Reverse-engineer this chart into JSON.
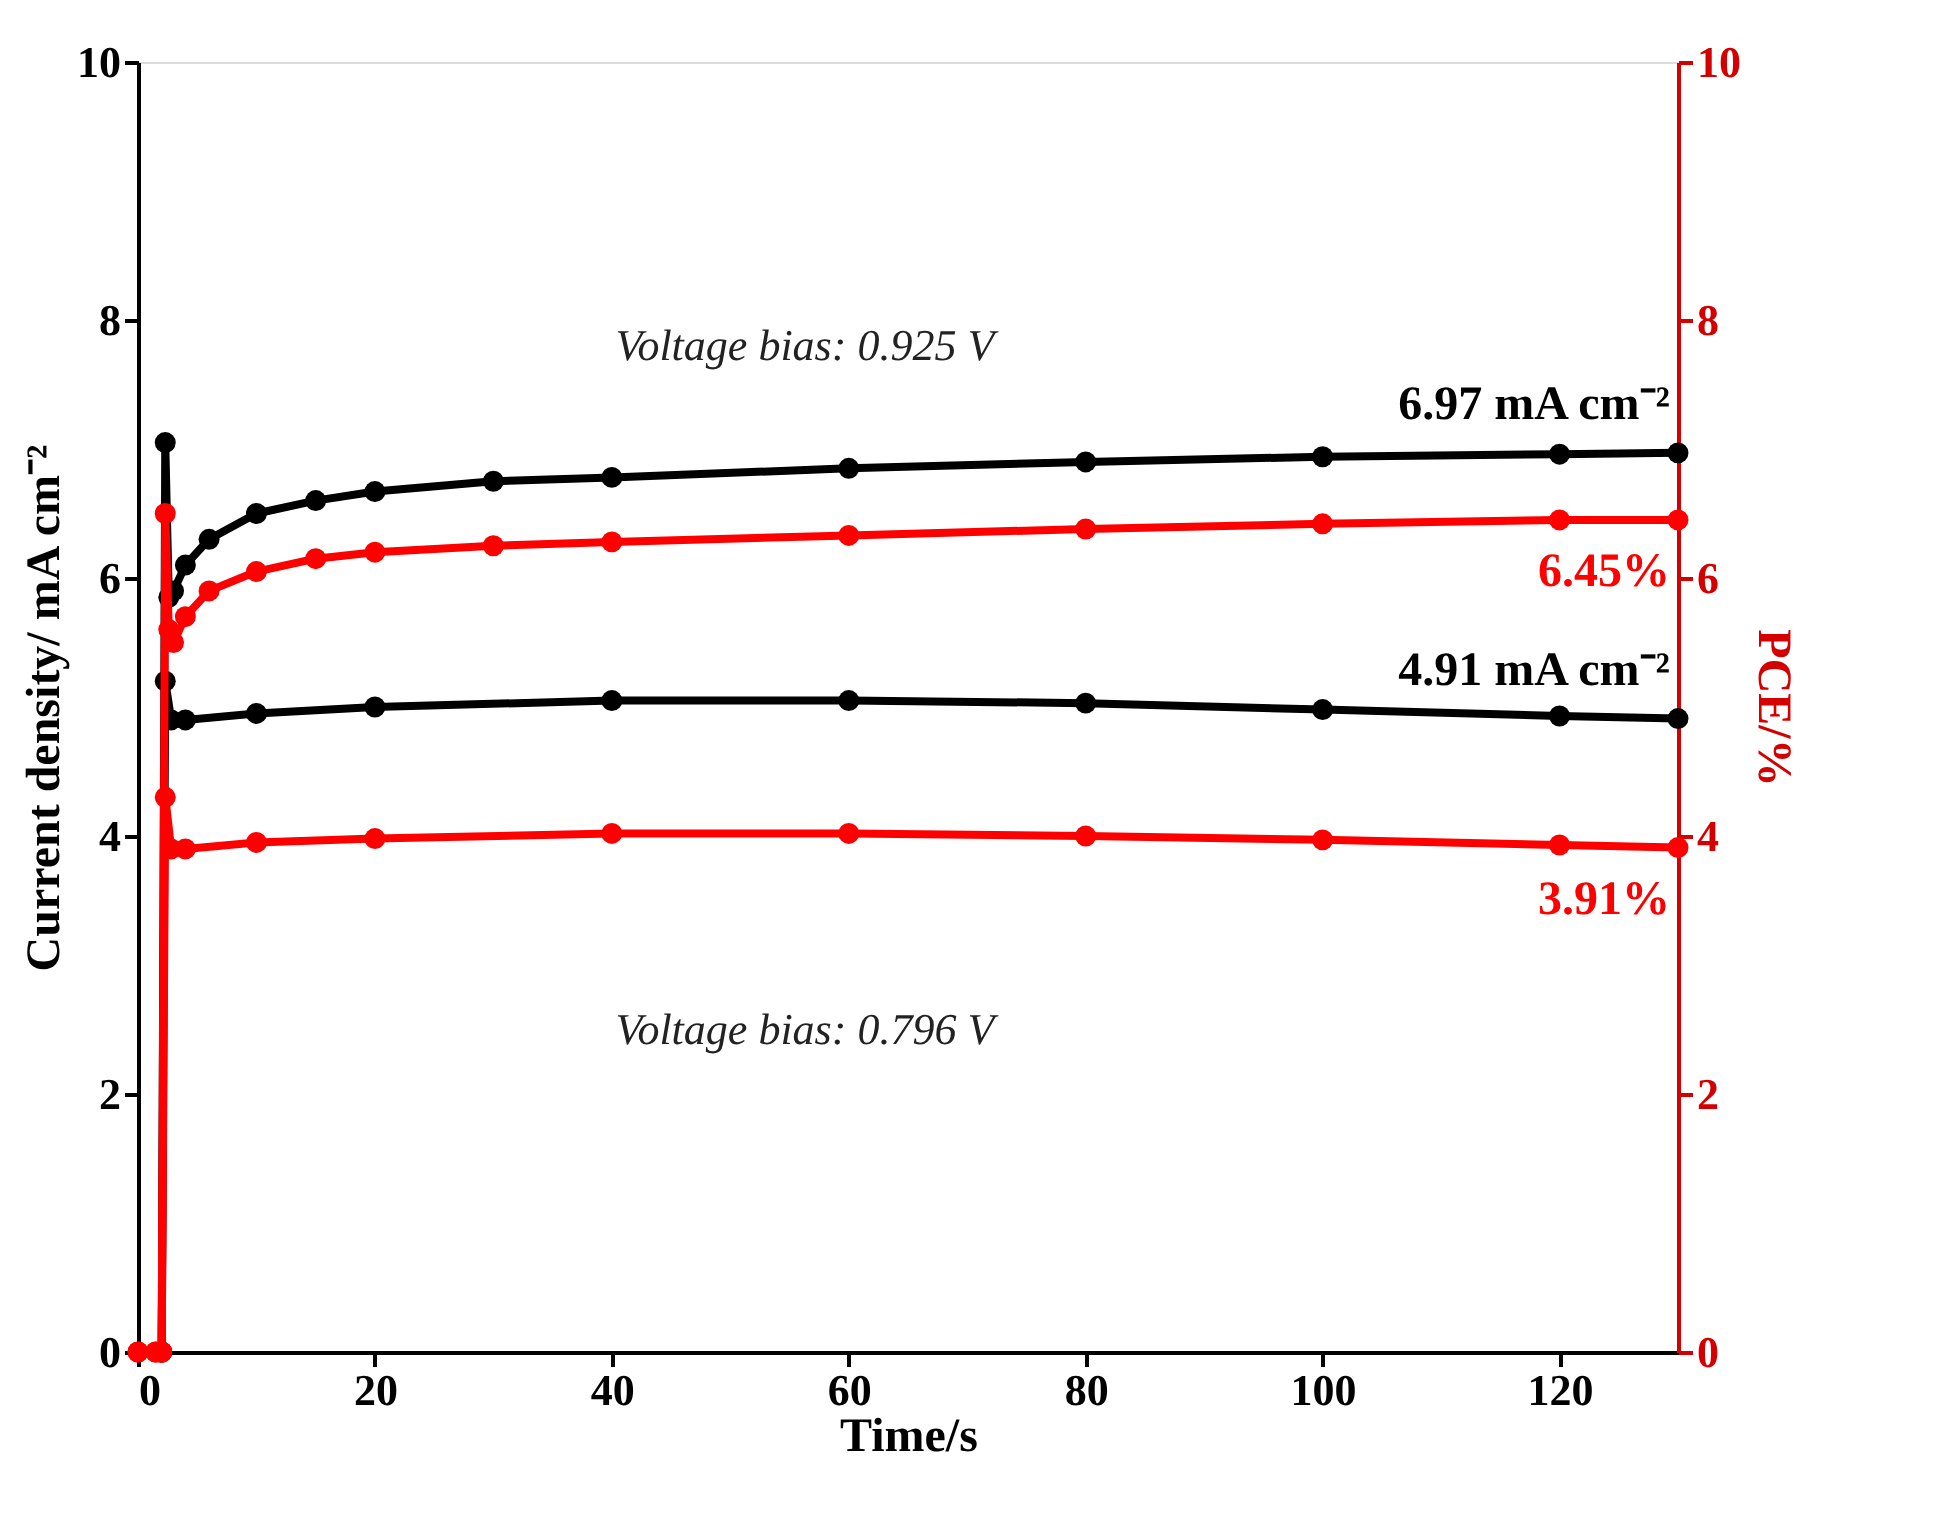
{
  "chart_data": {
    "type": "line",
    "xlabel": "Time/s",
    "ylabel": "Current density/ mA cm⁻²",
    "y2label": "PCE/%",
    "xlim": [
      0,
      130
    ],
    "xticks": [
      0,
      20,
      40,
      60,
      80,
      100,
      120
    ],
    "ylim": [
      0,
      10
    ],
    "yticks": [
      0,
      2,
      4,
      6,
      8,
      10
    ],
    "y2lim": [
      0,
      10
    ],
    "y2ticks": [
      0,
      2,
      4,
      6,
      8,
      10
    ],
    "marker": "circle",
    "grid": false,
    "line_style": "solid",
    "series": [
      {
        "color": "#000000",
        "x": [
          2,
          2.3,
          2.6,
          3,
          4,
          6,
          10,
          15,
          20,
          30,
          40,
          60,
          80,
          100,
          120,
          130
        ],
        "values": [
          0,
          7.05,
          5.85,
          5.9,
          6.1,
          6.3,
          6.5,
          6.6,
          6.67,
          6.75,
          6.78,
          6.85,
          6.9,
          6.94,
          6.96,
          6.97
        ],
        "value_labels": [
          null,
          null,
          null,
          null,
          null,
          null,
          null,
          null,
          null,
          null,
          null,
          null,
          null,
          null,
          null,
          "6.97 mA cm⁻²"
        ]
      },
      {
        "color": "#ff0000",
        "axis": "y2",
        "x": [
          0,
          1.5,
          2,
          2.3,
          2.6,
          3,
          4,
          6,
          10,
          15,
          20,
          30,
          40,
          60,
          80,
          100,
          120,
          130
        ],
        "values": [
          0,
          0,
          0,
          6.5,
          5.6,
          5.5,
          5.7,
          5.9,
          6.05,
          6.15,
          6.2,
          6.25,
          6.28,
          6.33,
          6.38,
          6.42,
          6.45,
          6.45
        ],
        "value_labels": [
          null,
          null,
          null,
          null,
          null,
          null,
          null,
          null,
          null,
          null,
          null,
          null,
          null,
          null,
          null,
          null,
          null,
          "6.45%"
        ]
      },
      {
        "color": "#000000",
        "x": [
          2,
          2.3,
          2.8,
          4,
          10,
          20,
          40,
          60,
          80,
          100,
          120,
          130
        ],
        "values": [
          0,
          5.2,
          4.9,
          4.9,
          4.95,
          5.0,
          5.05,
          5.05,
          5.03,
          4.98,
          4.93,
          4.91
        ],
        "value_labels": [
          null,
          null,
          null,
          null,
          null,
          null,
          null,
          null,
          null,
          null,
          null,
          "4.91 mA cm⁻²"
        ]
      },
      {
        "color": "#ff0000",
        "axis": "y2",
        "x": [
          0,
          1.5,
          2,
          2.3,
          2.8,
          4,
          10,
          20,
          40,
          60,
          80,
          100,
          120,
          130
        ],
        "values": [
          0,
          0,
          0,
          4.3,
          3.9,
          3.9,
          3.95,
          3.98,
          4.02,
          4.02,
          4.0,
          3.97,
          3.93,
          3.91
        ],
        "value_labels": [
          null,
          null,
          null,
          null,
          null,
          null,
          null,
          null,
          null,
          null,
          null,
          null,
          null,
          "3.91%"
        ]
      }
    ],
    "annotations": [
      "Voltage bias: 0.925 V",
      "Voltage bias: 0.796 V"
    ]
  }
}
